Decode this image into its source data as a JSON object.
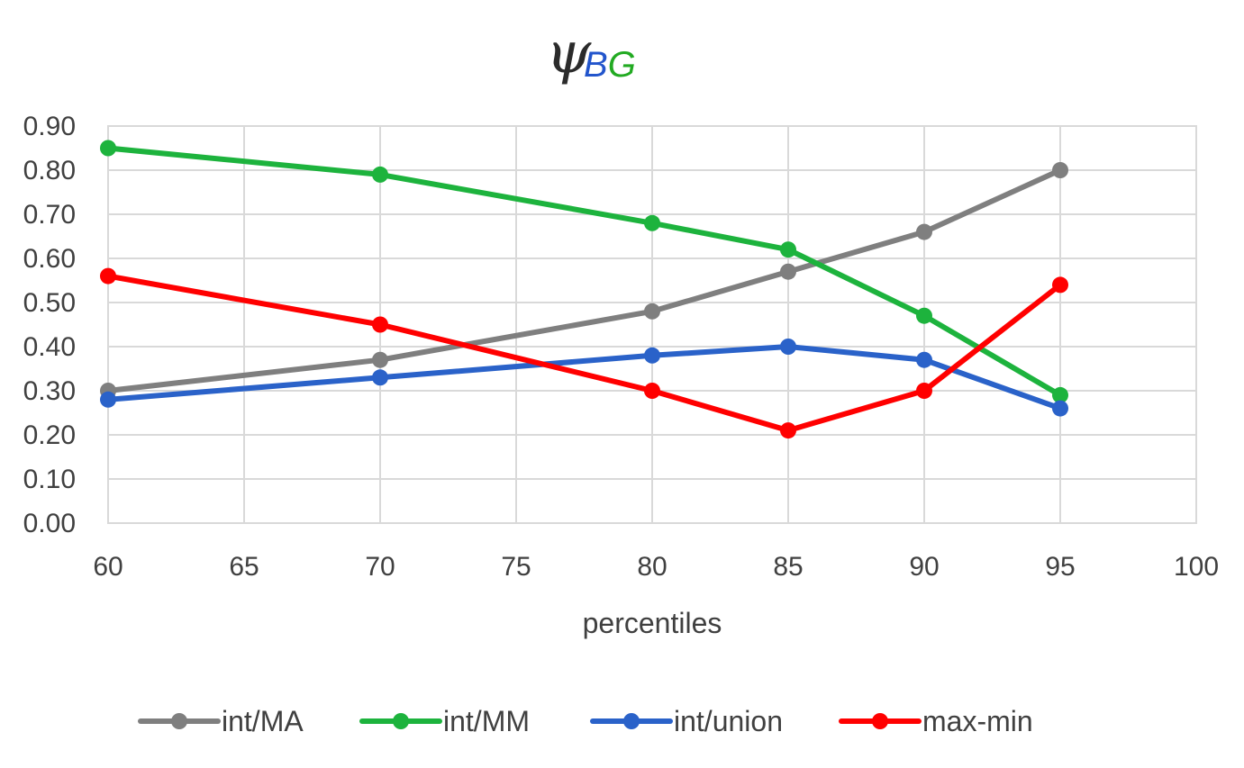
{
  "chart_data": {
    "type": "line",
    "title": {
      "symbol": "ψ",
      "subscript_parts": [
        {
          "text": "B",
          "color": "#2255cc"
        },
        {
          "text": "G",
          "color": "#22aa22"
        }
      ]
    },
    "xlabel": "percentiles",
    "ylabel": "",
    "xlim": [
      60,
      100
    ],
    "ylim": [
      0,
      0.9
    ],
    "x_ticks": [
      "60",
      "65",
      "70",
      "75",
      "80",
      "85",
      "90",
      "95",
      "100"
    ],
    "y_ticks": [
      "0.00",
      "0.10",
      "0.20",
      "0.30",
      "0.40",
      "0.50",
      "0.60",
      "0.70",
      "0.80",
      "0.90"
    ],
    "grid": true,
    "legend_position": "bottom",
    "x": [
      60,
      70,
      80,
      85,
      90,
      95
    ],
    "series": [
      {
        "name": "int/MA",
        "color": "#7f7f7f",
        "values": [
          0.3,
          0.37,
          0.48,
          0.57,
          0.66,
          0.8
        ]
      },
      {
        "name": "int/MM",
        "color": "#1db33d",
        "values": [
          0.85,
          0.79,
          0.68,
          0.62,
          0.47,
          0.29
        ]
      },
      {
        "name": "int/union",
        "color": "#2a62c9",
        "values": [
          0.28,
          0.33,
          0.38,
          0.4,
          0.37,
          0.26
        ]
      },
      {
        "name": "max-min",
        "color": "#ff0000",
        "values": [
          0.56,
          0.45,
          0.3,
          0.21,
          0.3,
          0.54
        ]
      }
    ]
  }
}
